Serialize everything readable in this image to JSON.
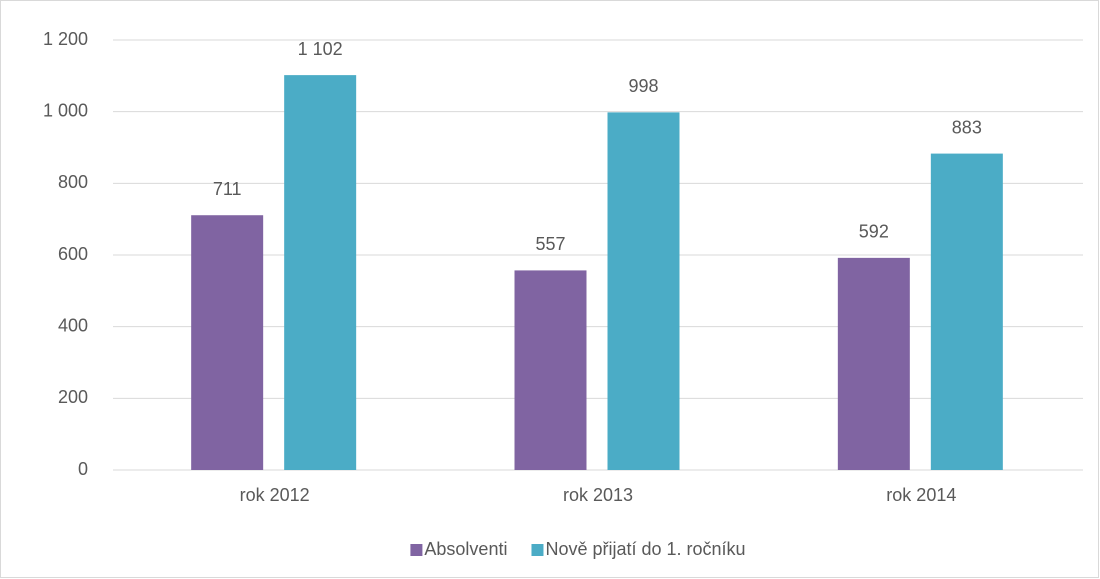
{
  "chart_data": {
    "type": "bar",
    "categories": [
      "rok 2012",
      "rok 2013",
      "rok 2014"
    ],
    "series": [
      {
        "name": "Absolventi",
        "color": "#8064a2",
        "values": [
          711,
          557,
          592
        ]
      },
      {
        "name": "Nově přijatí do 1. ročníku",
        "color": "#4bacc6",
        "values": [
          1102,
          998,
          883
        ],
        "value_labels": [
          "1 102",
          "998",
          "883"
        ]
      }
    ],
    "ylim": [
      0,
      1200
    ],
    "yticks": [
      0,
      200,
      400,
      600,
      800,
      {
        "value": 1000,
        "label": "1 000"
      },
      {
        "value": 1200,
        "label": "1 200"
      }
    ],
    "grid": true,
    "legend": "bottom"
  }
}
